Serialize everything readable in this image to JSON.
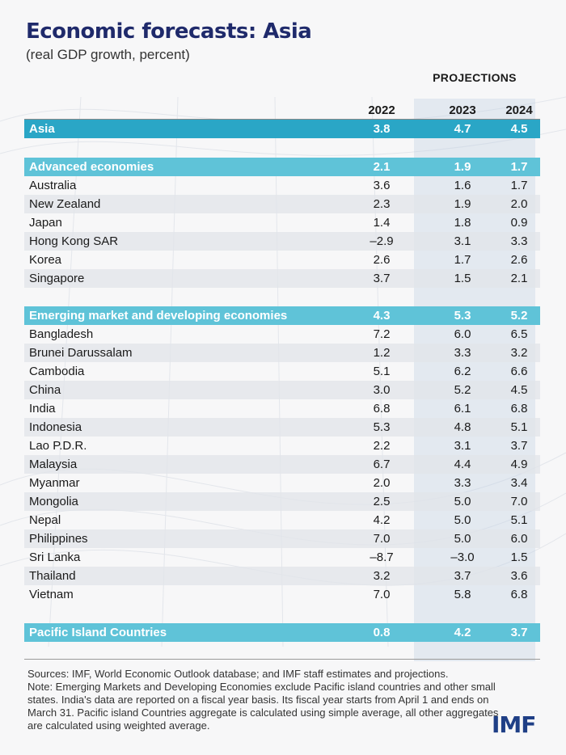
{
  "header": {
    "title": "Economic forecasts: Asia",
    "subtitle": "(real GDP growth, percent)",
    "projections_label": "PROJECTIONS"
  },
  "chart_data": {
    "type": "table",
    "columns": [
      "2022",
      "2023",
      "2024"
    ],
    "rows": [
      {
        "name": "Asia",
        "values": [
          "3.8",
          "4.7",
          "4.5"
        ],
        "style": "asia"
      },
      {
        "name": "Advanced economies",
        "values": [
          "2.1",
          "1.9",
          "1.7"
        ],
        "style": "group"
      },
      {
        "name": "Australia",
        "values": [
          "3.6",
          "1.6",
          "1.7"
        ],
        "style": "plain"
      },
      {
        "name": "New Zealand",
        "values": [
          "2.3",
          "1.9",
          "2.0"
        ],
        "style": "stripe"
      },
      {
        "name": "Japan",
        "values": [
          "1.4",
          "1.8",
          "0.9"
        ],
        "style": "plain"
      },
      {
        "name": "Hong Kong SAR",
        "values": [
          "–2.9",
          "3.1",
          "3.3"
        ],
        "style": "stripe"
      },
      {
        "name": "Korea",
        "values": [
          "2.6",
          "1.7",
          "2.6"
        ],
        "style": "plain"
      },
      {
        "name": "Singapore",
        "values": [
          "3.7",
          "1.5",
          "2.1"
        ],
        "style": "stripe"
      },
      {
        "name": "Emerging market and developing economies",
        "values": [
          "4.3",
          "5.3",
          "5.2"
        ],
        "style": "group"
      },
      {
        "name": "Bangladesh",
        "values": [
          "7.2",
          "6.0",
          "6.5"
        ],
        "style": "plain"
      },
      {
        "name": "Brunei Darussalam",
        "values": [
          "1.2",
          "3.3",
          "3.2"
        ],
        "style": "stripe"
      },
      {
        "name": "Cambodia",
        "values": [
          "5.1",
          "6.2",
          "6.6"
        ],
        "style": "plain"
      },
      {
        "name": "China",
        "values": [
          "3.0",
          "5.2",
          "4.5"
        ],
        "style": "stripe"
      },
      {
        "name": "India",
        "values": [
          "6.8",
          "6.1",
          "6.8"
        ],
        "style": "plain"
      },
      {
        "name": "Indonesia",
        "values": [
          "5.3",
          "4.8",
          "5.1"
        ],
        "style": "stripe"
      },
      {
        "name": "Lao P.D.R.",
        "values": [
          "2.2",
          "3.1",
          "3.7"
        ],
        "style": "plain"
      },
      {
        "name": "Malaysia",
        "values": [
          "6.7",
          "4.4",
          "4.9"
        ],
        "style": "stripe"
      },
      {
        "name": "Myanmar",
        "values": [
          "2.0",
          "3.3",
          "3.4"
        ],
        "style": "plain"
      },
      {
        "name": "Mongolia",
        "values": [
          "2.5",
          "5.0",
          "7.0"
        ],
        "style": "stripe"
      },
      {
        "name": "Nepal",
        "values": [
          "4.2",
          "5.0",
          "5.1"
        ],
        "style": "plain"
      },
      {
        "name": "Philippines",
        "values": [
          "7.0",
          "5.0",
          "6.0"
        ],
        "style": "stripe"
      },
      {
        "name": "Sri Lanka",
        "values": [
          "–8.7",
          "–3.0",
          "1.5"
        ],
        "style": "plain"
      },
      {
        "name": "Thailand",
        "values": [
          "3.2",
          "3.7",
          "3.6"
        ],
        "style": "stripe"
      },
      {
        "name": "Vietnam",
        "values": [
          "7.0",
          "5.8",
          "6.8"
        ],
        "style": "plain"
      },
      {
        "name": "Pacific Island Countries",
        "values": [
          "0.8",
          "4.2",
          "3.7"
        ],
        "style": "group"
      }
    ]
  },
  "notes": {
    "sources": "Sources: IMF, World Economic Outlook database; and IMF staff estimates and projections.",
    "note": "Note: Emerging Markets and Developing Economies exclude Pacific island countries and other small states. India's data are reported on a fiscal year basis. Its fiscal year starts from April 1 and ends on March 31. Pacific island Countries aggregate is calculated using simple average, all other aggregates are calculated using weighted average."
  },
  "logo": "IMF",
  "colors": {
    "title": "#1f2a6b",
    "asia_row": "#2aa6c6",
    "group_row": "#5fc3d8",
    "logo": "#1f3f86"
  }
}
